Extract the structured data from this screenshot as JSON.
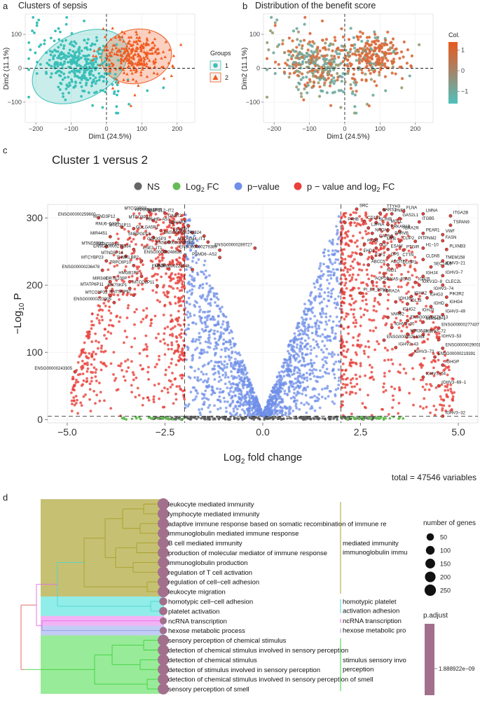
{
  "panel_letters": {
    "a": "a",
    "b": "b",
    "c": "c",
    "d": "d"
  },
  "chart_data": [
    {
      "id": "a",
      "type": "scatter",
      "title": "Clusters of sepsis",
      "xlabel": "Dim1 (24.5%)",
      "ylabel": "Dim2 (11.1%)",
      "xlim": [
        -230,
        250
      ],
      "ylim": [
        -160,
        160
      ],
      "xticks": [
        -200,
        -100,
        0,
        100,
        200
      ],
      "yticks": [
        -100,
        0,
        100
      ],
      "xtick_labels": [
        "−200",
        "−100",
        "0",
        "100",
        "200"
      ],
      "ytick_labels": [
        "−100",
        "0",
        "100"
      ],
      "legend": {
        "title": "Groups",
        "entries": [
          {
            "label": "1",
            "color": "#3ABFB8"
          },
          {
            "label": "2",
            "color": "#F05A1F"
          }
        ]
      },
      "series": [
        {
          "name": "1",
          "color": "#3ABFB8",
          "marker": "circle",
          "center": [
            -80,
            10
          ],
          "spread": [
            62,
            44
          ],
          "count": 340
        },
        {
          "name": "2",
          "color": "#F05A1F",
          "marker": "triangle",
          "center": [
            80,
            35
          ],
          "spread": [
            48,
            36
          ],
          "count": 260
        }
      ],
      "ellipses": [
        {
          "group": "1",
          "center": [
            -75,
            5
          ],
          "rx": 145,
          "ry": 95,
          "angle_deg": -28,
          "color": "#3ABFB8"
        },
        {
          "group": "2",
          "center": [
            85,
            35
          ],
          "rx": 100,
          "ry": 80,
          "angle_deg": -10,
          "color": "#F05A1F"
        }
      ]
    },
    {
      "id": "b",
      "type": "scatter",
      "title": "Distribution of the benefit score",
      "xlabel": "Dim1 (24.5%)",
      "ylabel": "Dim2 (11.1%)",
      "xlim": [
        -230,
        250
      ],
      "ylim": [
        -160,
        160
      ],
      "xticks": [
        -200,
        -100,
        0,
        100,
        200
      ],
      "yticks": [
        -100,
        0,
        100
      ],
      "xtick_labels": [
        "−200",
        "−100",
        "0",
        "100",
        "200"
      ],
      "ytick_labels": [
        "−100",
        "0",
        "100"
      ],
      "colorbar": {
        "title": "Col.",
        "ticks": [
          1,
          0,
          -1
        ],
        "tick_labels": [
          "1",
          "0",
          "−1"
        ],
        "range": [
          -1.6,
          1.4
        ],
        "low_color": "#4FC1BC",
        "high_color": "#E65A1E"
      },
      "series": [
        {
          "name": "low",
          "color": "#6FA89F",
          "center": [
            -80,
            10
          ],
          "spread": [
            62,
            44
          ],
          "count": 340
        },
        {
          "name": "high",
          "color": "#D9693A",
          "center": [
            80,
            35
          ],
          "spread": [
            48,
            36
          ],
          "count": 260
        }
      ]
    },
    {
      "id": "c",
      "type": "scatter",
      "title": "Cluster 1 versus 2",
      "xlabel_prefix": "Log",
      "xlabel_sub": "2",
      "xlabel_suffix": " fold change",
      "ylabel_prefix": "−Log",
      "ylabel_sub": "10",
      "ylabel_suffix": " P",
      "xlim": [
        -5.5,
        5.5
      ],
      "ylim": [
        -5,
        320
      ],
      "xticks": [
        -5.0,
        -2.5,
        0.0,
        2.5,
        5.0
      ],
      "yticks": [
        0,
        100,
        200,
        300
      ],
      "xtick_labels": [
        "−5.0",
        "−2.5",
        "0.0",
        "2.5",
        "5.0"
      ],
      "ytick_labels": [
        "0",
        "100",
        "200",
        "300"
      ],
      "fc_cutoff": 2,
      "p_cutoff_y": 5,
      "footer": "total = 47546 variables",
      "legend": [
        {
          "label": "NS",
          "color": "#666666"
        },
        {
          "label": "Log",
          "sub": "2",
          "suffix": " FC",
          "color": "#66BB55"
        },
        {
          "label": "p−value",
          "color": "#6F8FE8"
        },
        {
          "label": "p − value and log",
          "sub": "2",
          "suffix": " FC",
          "color": "#E8403A"
        }
      ],
      "gene_labels": [
        {
          "label": "MTCO3P23",
          "x": -2.9,
          "y": 309
        },
        {
          "label": "HNRNPA1P35",
          "x": -2.5,
          "y": 307
        },
        {
          "label": "N4BP2L2−IT2",
          "x": -2.2,
          "y": 306
        },
        {
          "label": "ENSG00000259600",
          "x": -4.2,
          "y": 300
        },
        {
          "label": "MTND3P12",
          "x": -3.7,
          "y": 297
        },
        {
          "label": "MTCO3P11",
          "x": -2.8,
          "y": 296
        },
        {
          "label": "TMLHE−AS1",
          "x": -2.3,
          "y": 293
        },
        {
          "label": "GNAT2",
          "x": -2.0,
          "y": 298
        },
        {
          "label": "RNU6−531P",
          "x": -3.6,
          "y": 286
        },
        {
          "label": "MTCO1P11",
          "x": -3.3,
          "y": 284
        },
        {
          "label": "GOLGA5P1",
          "x": -2.6,
          "y": 281
        },
        {
          "label": "LDHAP2",
          "x": -1.9,
          "y": 288
        },
        {
          "label": "EIF4EP1",
          "x": -1.8,
          "y": 278
        },
        {
          "label": "ENSG00000242324",
          "x": -1.5,
          "y": 273
        },
        {
          "label": "MIR4451",
          "x": -3.9,
          "y": 272
        },
        {
          "label": "SNRPGP18",
          "x": -2.8,
          "y": 271
        },
        {
          "label": "GLRX5P3",
          "x": -2.4,
          "y": 264
        },
        {
          "label": "ANKRD44−IT1",
          "x": -1.4,
          "y": 264
        },
        {
          "label": "ENSG00000287185",
          "x": -1.7,
          "y": 258
        },
        {
          "label": "ENSG00000279389",
          "x": -1.1,
          "y": 252
        },
        {
          "label": "ENSG00000289727",
          "x": -0.2,
          "y": 255
        },
        {
          "label": "MTND5P32",
          "x": -4.0,
          "y": 257
        },
        {
          "label": "MTND3P14",
          "x": -3.6,
          "y": 256
        },
        {
          "label": "ENSG00000279334",
          "x": -3.3,
          "y": 253
        },
        {
          "label": "ESE3−IT1",
          "x": -2.5,
          "y": 250
        },
        {
          "label": "PSMD6−AS2",
          "x": -1.1,
          "y": 241
        },
        {
          "label": "ENSG00000248636",
          "x": -2.0,
          "y": 244
        },
        {
          "label": "MTND5P14",
          "x": -3.5,
          "y": 243
        },
        {
          "label": "MTCYBP23",
          "x": -4.0,
          "y": 236
        },
        {
          "label": "THMKLBP2",
          "x": -3.1,
          "y": 236
        },
        {
          "label": "TRPC6P10",
          "x": -3.3,
          "y": 229
        },
        {
          "label": "GK3P",
          "x": -2.4,
          "y": 224
        },
        {
          "label": "ENSG00000224548",
          "x": -1.8,
          "y": 223
        },
        {
          "label": "ENSG00000236478",
          "x": -4.1,
          "y": 222
        },
        {
          "label": "HMGB1P3",
          "x": -3.1,
          "y": 213
        },
        {
          "label": "MIR340",
          "x": -3.9,
          "y": 205
        },
        {
          "label": "OR7E100P",
          "x": -3.4,
          "y": 205
        },
        {
          "label": "MTCO2P11",
          "x": -2.7,
          "y": 199
        },
        {
          "label": "MTATP6P11",
          "x": -4.0,
          "y": 196
        },
        {
          "label": "RN7SKP1",
          "x": -3.4,
          "y": 195
        },
        {
          "label": "MTCO2P33",
          "x": -3.9,
          "y": 184
        },
        {
          "label": "RN7SKP97",
          "x": -3.3,
          "y": 185
        },
        {
          "label": "ENSG00000223905",
          "x": -3.8,
          "y": 174
        },
        {
          "label": "ENSG00000243305",
          "x": -4.8,
          "y": 71
        },
        {
          "label": "SRC",
          "x": 2.4,
          "y": 313
        },
        {
          "label": "TTYH3",
          "x": 3.1,
          "y": 312
        },
        {
          "label": "VARS1",
          "x": 3.0,
          "y": 307
        },
        {
          "label": "PNF2",
          "x": 3.3,
          "y": 306
        },
        {
          "label": "FLNA",
          "x": 3.6,
          "y": 310
        },
        {
          "label": "LMNA",
          "x": 4.1,
          "y": 306
        },
        {
          "label": "ITGA2B",
          "x": 4.8,
          "y": 303
        },
        {
          "label": "GAS2L1",
          "x": 3.5,
          "y": 299
        },
        {
          "label": "CD151",
          "x": 2.6,
          "y": 295
        },
        {
          "label": "SCRIB",
          "x": 2.9,
          "y": 293
        },
        {
          "label": "MGLL",
          "x": 3.2,
          "y": 290
        },
        {
          "label": "ITGB5",
          "x": 4.0,
          "y": 294
        },
        {
          "label": "TSPAN9",
          "x": 4.8,
          "y": 289
        },
        {
          "label": "P4HB",
          "x": 2.1,
          "y": 293
        },
        {
          "label": "L3FNA",
          "x": 2.7,
          "y": 285
        },
        {
          "label": "PRKAR1B",
          "x": 3.2,
          "y": 282
        },
        {
          "label": "TBXA2R",
          "x": 3.5,
          "y": 280
        },
        {
          "label": "PEAR1",
          "x": 4.1,
          "y": 277
        },
        {
          "label": "VWF",
          "x": 4.6,
          "y": 275
        },
        {
          "label": "NRGN",
          "x": 2.8,
          "y": 277
        },
        {
          "label": "PARVB",
          "x": 3.3,
          "y": 272
        },
        {
          "label": "FASN",
          "x": 4.6,
          "y": 266
        },
        {
          "label": "CAPN1",
          "x": 2.9,
          "y": 268
        },
        {
          "label": "MYB",
          "x": 3.1,
          "y": 264
        },
        {
          "label": "CLIP2",
          "x": 3.5,
          "y": 265
        },
        {
          "label": "PITPNM2",
          "x": 3.9,
          "y": 265
        },
        {
          "label": "PKD1",
          "x": 2.6,
          "y": 261
        },
        {
          "label": "CLU",
          "x": 2.9,
          "y": 255
        },
        {
          "label": "ESAM",
          "x": 3.2,
          "y": 253
        },
        {
          "label": "PTGIR",
          "x": 3.6,
          "y": 252
        },
        {
          "label": "H1−10",
          "x": 4.1,
          "y": 255
        },
        {
          "label": "PLXNB3",
          "x": 4.7,
          "y": 253
        },
        {
          "label": "EHD2",
          "x": 2.5,
          "y": 246
        },
        {
          "label": "E2F1",
          "x": 2.8,
          "y": 240
        },
        {
          "label": "GP5",
          "x": 3.2,
          "y": 241
        },
        {
          "label": "CTTN",
          "x": 3.5,
          "y": 240
        },
        {
          "label": "CLDN5",
          "x": 4.1,
          "y": 238
        },
        {
          "label": "TMEM158",
          "x": 4.6,
          "y": 236
        },
        {
          "label": "ABCC5",
          "x": 2.7,
          "y": 230
        },
        {
          "label": "ACOT7",
          "x": 3.2,
          "y": 230
        },
        {
          "label": "DUSP2",
          "x": 3.5,
          "y": 229
        },
        {
          "label": "SEC14L5",
          "x": 4.3,
          "y": 227
        },
        {
          "label": "IGHV3−21",
          "x": 4.6,
          "y": 228
        },
        {
          "label": "NID1",
          "x": 3.1,
          "y": 217
        },
        {
          "label": "IGHV3−7",
          "x": 4.6,
          "y": 214
        },
        {
          "label": "IGHJ4",
          "x": 4.1,
          "y": 213
        },
        {
          "label": "AQP10",
          "x": 2.8,
          "y": 205
        },
        {
          "label": "RNA5−8SN5",
          "x": 3.1,
          "y": 204
        },
        {
          "label": "IGHJ5",
          "x": 3.9,
          "y": 204
        },
        {
          "label": "IGKV1D−8",
          "x": 4.0,
          "y": 200
        },
        {
          "label": "CLEC2L",
          "x": 4.6,
          "y": 200
        },
        {
          "label": "PI_B3_tRNA",
          "x": 2.5,
          "y": 188
        },
        {
          "label": "ADRA2A",
          "x": 3.0,
          "y": 186
        },
        {
          "label": "IGHV3−74",
          "x": 4.3,
          "y": 190
        },
        {
          "label": "IGHJ6",
          "x": 3.4,
          "y": 175
        },
        {
          "label": "IGHA2",
          "x": 3.8,
          "y": 183
        },
        {
          "label": "IGHG3",
          "x": 4.2,
          "y": 181
        },
        {
          "label": "PIK3R2",
          "x": 4.7,
          "y": 182
        },
        {
          "label": "IGLJ3",
          "x": 3.7,
          "y": 172
        },
        {
          "label": "IGHG4",
          "x": 4.7,
          "y": 170
        },
        {
          "label": "IGHD",
          "x": 4.3,
          "y": 168
        },
        {
          "label": "IGHG2",
          "x": 3.5,
          "y": 159
        },
        {
          "label": "IGHJ3",
          "x": 4.0,
          "y": 158
        },
        {
          "label": "IGHV3−49",
          "x": 4.6,
          "y": 156
        },
        {
          "label": "VARS2",
          "x": 3.2,
          "y": 152
        },
        {
          "label": "ENSG00000276213",
          "x": 3.7,
          "y": 147
        },
        {
          "label": "MIR548−1",
          "x": 4.1,
          "y": 145
        },
        {
          "label": "IGHV3−30",
          "x": 3.3,
          "y": 137
        },
        {
          "label": "ENSG00000277437",
          "x": 4.5,
          "y": 136
        },
        {
          "label": "MIR3648−1",
          "x": 3.7,
          "y": 127
        },
        {
          "label": "IGHV3−72",
          "x": 4.1,
          "y": 126
        },
        {
          "label": "ENSG00000264063",
          "x": 3.1,
          "y": 118
        },
        {
          "label": "IGHV3−53",
          "x": 4.5,
          "y": 119
        },
        {
          "label": "IGHV3−43",
          "x": 3.4,
          "y": 107
        },
        {
          "label": "ENSG00000290010",
          "x": 4.6,
          "y": 106
        },
        {
          "label": "IGHV3−73",
          "x": 3.8,
          "y": 96
        },
        {
          "label": "ENSG00000219391",
          "x": 4.4,
          "y": 93
        },
        {
          "label": "IGHGP",
          "x": 4.6,
          "y": 81
        },
        {
          "label": "IGHV3−64",
          "x": 4.1,
          "y": 63
        },
        {
          "label": "IGHV3−69−1",
          "x": 4.5,
          "y": 50
        },
        {
          "label": "IGHV3−32",
          "x": 4.6,
          "y": 5
        }
      ]
    },
    {
      "id": "d",
      "type": "table",
      "terms": [
        {
          "term": "leukocyte mediated immunity",
          "group": 1,
          "genes": 260
        },
        {
          "term": "lymphocyte mediated immunity",
          "group": 1,
          "genes": 250
        },
        {
          "term": "adaptive immune response based on somatic recombination of immune re",
          "group": 1,
          "genes": 240
        },
        {
          "term": "immunoglobulin mediated immune response",
          "group": 1,
          "genes": 230
        },
        {
          "term": "B cell mediated immunity",
          "group": 1,
          "genes": 230
        },
        {
          "term": "production of molecular mediator of immune response",
          "group": 1,
          "genes": 235
        },
        {
          "term": "immunoglobulin production",
          "group": 1,
          "genes": 220
        },
        {
          "term": "regulation of T cell activation",
          "group": 1,
          "genes": 240
        },
        {
          "term": "regulation of cell−cell adhesion",
          "group": 1,
          "genes": 245
        },
        {
          "term": "leukocyte migration",
          "group": 1,
          "genes": 235
        },
        {
          "term": "homotypic cell−cell adhesion",
          "group": 2,
          "genes": 70
        },
        {
          "term": "platelet activation",
          "group": 2,
          "genes": 80
        },
        {
          "term": "ncRNA transcription",
          "group": 3,
          "genes": 40
        },
        {
          "term": "hexose metabolic process",
          "group": 4,
          "genes": 50
        },
        {
          "term": "sensory perception of chemical stimulus",
          "group": 5,
          "genes": 240
        },
        {
          "term": "detection of chemical stimulus involved in sensory perception",
          "group": 5,
          "genes": 230
        },
        {
          "term": "detection of chemical stimulus",
          "group": 5,
          "genes": 240
        },
        {
          "term": "detection of stimulus involved in sensory perception",
          "group": 5,
          "genes": 235
        },
        {
          "term": "detection of chemical stimulus involved in sensory perception of smell",
          "group": 5,
          "genes": 225
        },
        {
          "term": "sensory perception of smell",
          "group": 5,
          "genes": 230
        }
      ],
      "clusters": [
        {
          "group": 1,
          "color": "#A8A02A",
          "bg": "#BCB55A",
          "labels": [
            "mediated immunity",
            "immunoglobulin immu"
          ]
        },
        {
          "group": 2,
          "color": "#4ED6CF",
          "bg": "#7EEAE4",
          "labels": [
            "homotypic platelet",
            "activation adhesion"
          ]
        },
        {
          "group": 3,
          "color": "#E36AE8",
          "bg": "#F0A6F3",
          "labels": [
            "ncRNA transcription"
          ]
        },
        {
          "group": 4,
          "color": "#8C9CE6",
          "bg": "#B8C4F2",
          "labels": [
            "hexose metabolic pro"
          ]
        },
        {
          "group": 5,
          "color": "#3FD23F",
          "bg": "#86E886",
          "labels": [
            "stimulus sensory invo",
            "perception"
          ]
        }
      ],
      "size_legend": {
        "title": "number of genes",
        "values": [
          50,
          100,
          150,
          200,
          250
        ]
      },
      "padj_legend": {
        "title": "p.adjust",
        "value_label": "1.888922e−09",
        "color": "#A2708C"
      },
      "point_color": "#A2708C"
    }
  ]
}
